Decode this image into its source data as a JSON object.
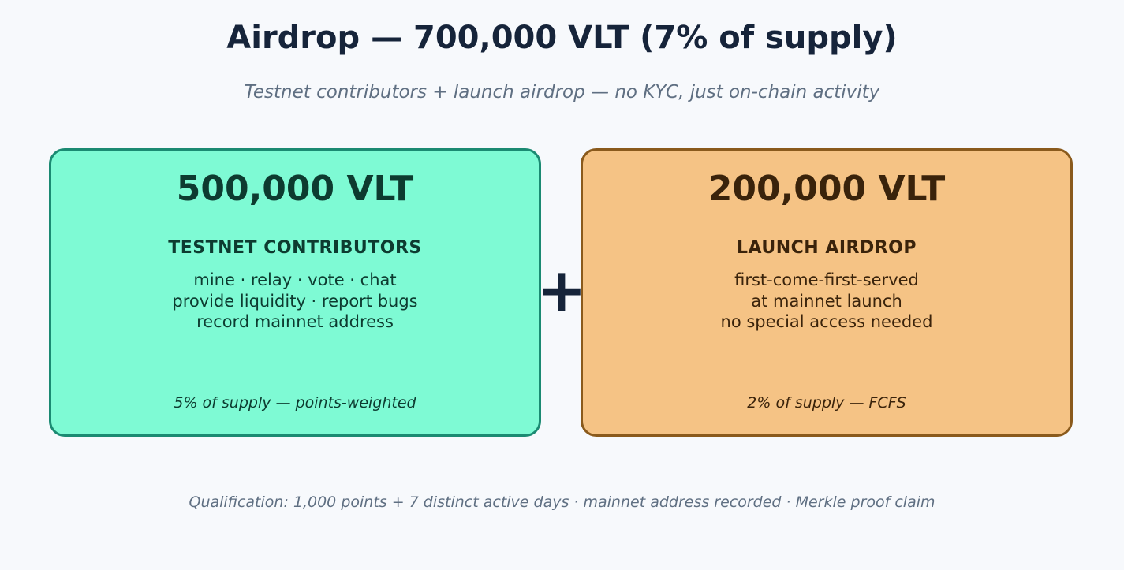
{
  "title": "Airdrop — 700,000 VLT (7% of supply)",
  "subtitle": "Testnet contributors + launch airdrop — no KYC, just on-chain activity",
  "operator": "+",
  "cards": [
    {
      "amount": "500,000 VLT",
      "heading": "TESTNET CONTRIBUTORS",
      "lines": [
        "mine · relay · vote · chat",
        "provide liquidity · report bugs",
        "record mainnet address"
      ],
      "note": "5% of supply — points-weighted",
      "fill_color": "#7efad4",
      "border_color": "#1b8a72"
    },
    {
      "amount": "200,000 VLT",
      "heading": "LAUNCH AIRDROP",
      "lines": [
        "first-come-first-served",
        "at mainnet launch",
        "no special access needed"
      ],
      "note": "2% of supply — FCFS",
      "fill_color": "#f5c385",
      "border_color": "#8a5a1c"
    }
  ],
  "footer": "Qualification: 1,000 points + 7 distinct active days · mainnet address recorded · Merkle proof claim"
}
